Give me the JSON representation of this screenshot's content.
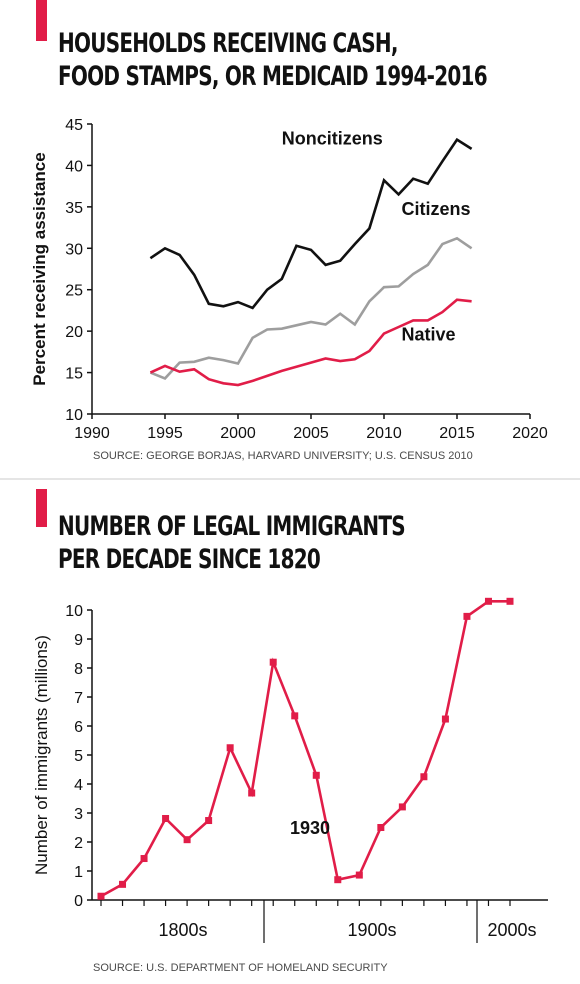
{
  "chart_data": [
    {
      "type": "line",
      "title_lines": [
        "HOUSEHOLDS RECEIVING CASH,",
        "FOOD STAMPS, OR MEDICAID 1994-2016"
      ],
      "ylabel": "Percent receiving assistance",
      "xlim": [
        1990,
        2020
      ],
      "ylim": [
        10,
        45
      ],
      "x_ticks": [
        1990,
        1995,
        2000,
        2005,
        2010,
        2015,
        2020
      ],
      "y_ticks": [
        10,
        15,
        20,
        25,
        30,
        35,
        40,
        45
      ],
      "source": "SOURCE: GEORGE BORJAS, HARVARD UNIVERSITY; U.S. CENSUS 2010",
      "series": [
        {
          "name": "Noncitizens",
          "color": "#111111",
          "x": [
            1994,
            1995,
            1996,
            1997,
            1998,
            1999,
            2000,
            2001,
            2002,
            2003,
            2004,
            2005,
            2006,
            2007,
            2008,
            2009,
            2010,
            2011,
            2012,
            2013,
            2014,
            2015,
            2016
          ],
          "values": [
            28.8,
            30.0,
            29.2,
            26.8,
            23.3,
            23.0,
            23.5,
            22.8,
            25.0,
            26.3,
            30.3,
            29.8,
            28.0,
            28.5,
            30.5,
            32.4,
            38.2,
            36.5,
            38.4,
            37.8,
            40.5,
            43.1,
            42.0
          ]
        },
        {
          "name": "Citizens",
          "color": "#9e9e9e",
          "x": [
            1994,
            1995,
            1996,
            1997,
            1998,
            1999,
            2000,
            2001,
            2002,
            2003,
            2004,
            2005,
            2006,
            2007,
            2008,
            2009,
            2010,
            2011,
            2012,
            2013,
            2014,
            2015,
            2016
          ],
          "values": [
            15.0,
            14.3,
            16.2,
            16.3,
            16.8,
            16.5,
            16.1,
            19.2,
            20.2,
            20.3,
            20.7,
            21.1,
            20.8,
            22.1,
            20.8,
            23.6,
            25.3,
            25.4,
            26.9,
            28.0,
            30.5,
            31.2,
            30.0
          ]
        },
        {
          "name": "Native",
          "color": "#e11d48",
          "x": [
            1994,
            1995,
            1996,
            1997,
            1998,
            1999,
            2000,
            2001,
            2002,
            2003,
            2004,
            2005,
            2006,
            2007,
            2008,
            2009,
            2010,
            2011,
            2012,
            2013,
            2014,
            2015,
            2016
          ],
          "values": [
            15.0,
            15.8,
            15.1,
            15.4,
            14.2,
            13.7,
            13.5,
            14.0,
            14.6,
            15.2,
            15.7,
            16.2,
            16.7,
            16.4,
            16.6,
            17.6,
            19.7,
            20.5,
            21.3,
            21.3,
            22.3,
            23.8,
            23.6
          ]
        }
      ]
    },
    {
      "type": "line",
      "title_lines": [
        "NUMBER OF LEGAL IMMIGRANTS",
        "PER DECADE SINCE 1820"
      ],
      "ylabel": "Number of immigrants (millions)",
      "ylim": [
        0,
        10
      ],
      "y_ticks": [
        0,
        1,
        2,
        3,
        4,
        5,
        6,
        7,
        8,
        9,
        10
      ],
      "x_segments": [
        "1800s",
        "1900s",
        "2000s"
      ],
      "source": "SOURCE: U.S. DEPARTMENT OF HOMELAND SECURITY",
      "annotation": "1930",
      "series": [
        {
          "color": "#e11d48",
          "x": [
            1820,
            1830,
            1840,
            1850,
            1860,
            1870,
            1880,
            1890,
            1900,
            1910,
            1920,
            1930,
            1940,
            1950,
            1960,
            1970,
            1980,
            1990,
            2000,
            2010
          ],
          "values": [
            0.13,
            0.54,
            1.43,
            2.81,
            2.08,
            2.74,
            5.25,
            3.69,
            8.2,
            6.35,
            4.3,
            0.7,
            0.86,
            2.5,
            3.21,
            4.25,
            6.24,
            9.78,
            10.3,
            10.3
          ]
        }
      ]
    }
  ]
}
